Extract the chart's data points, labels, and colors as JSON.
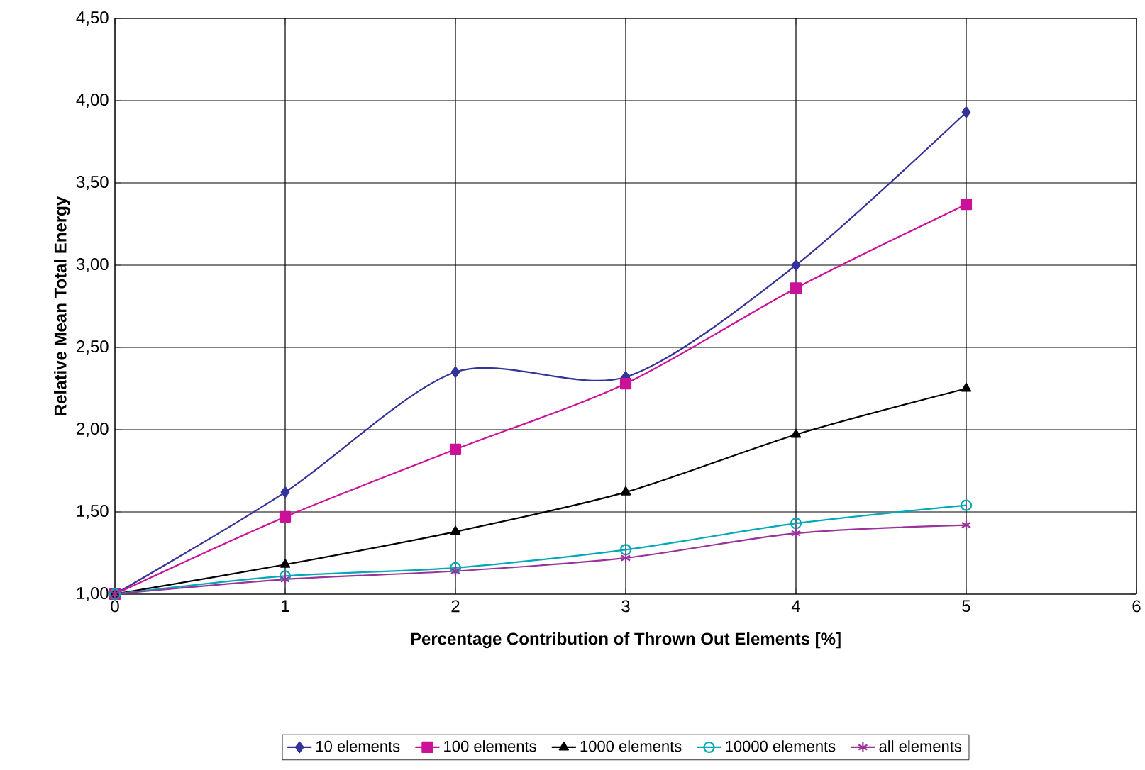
{
  "chart_data": {
    "type": "line",
    "xlabel": "Percentage Contribution of Thrown Out Elements [%]",
    "ylabel": "Relative Mean Total Energy",
    "x": [
      0,
      1,
      2,
      3,
      4,
      5
    ],
    "xlim": [
      0,
      6
    ],
    "xticks": [
      0,
      1,
      2,
      3,
      4,
      5,
      6
    ],
    "ylim": [
      1,
      4.5
    ],
    "yticks": [
      {
        "value": 1,
        "label": "1,00"
      },
      {
        "value": 1.5,
        "label": "1,50"
      },
      {
        "value": 2,
        "label": "2,00"
      },
      {
        "value": 2.5,
        "label": "2,50"
      },
      {
        "value": 3,
        "label": "3,00"
      },
      {
        "value": 3.5,
        "label": "3,50"
      },
      {
        "value": 4,
        "label": "4,00"
      },
      {
        "value": 4.5,
        "label": "4,50"
      }
    ],
    "grid": true,
    "legend": "bottom",
    "line_style": "solid",
    "series": [
      {
        "name": "10 elements",
        "color": "#333399",
        "marker": "diamond",
        "values": [
          1.0,
          1.62,
          2.35,
          2.32,
          3.0,
          3.93
        ]
      },
      {
        "name": "100 elements",
        "color": "#cc1199",
        "marker": "square",
        "values": [
          1.0,
          1.47,
          1.88,
          2.28,
          2.86,
          3.37
        ]
      },
      {
        "name": "1000 elements",
        "color": "#000000",
        "marker": "triangle",
        "values": [
          1.0,
          1.18,
          1.38,
          1.62,
          1.97,
          2.25
        ]
      },
      {
        "name": "10000 elements",
        "color": "#00a8b8",
        "marker": "circle",
        "values": [
          1.0,
          1.11,
          1.16,
          1.27,
          1.43,
          1.54
        ]
      },
      {
        "name": "all elements",
        "color": "#993399",
        "marker": "cross",
        "values": [
          1.0,
          1.09,
          1.14,
          1.22,
          1.37,
          1.42
        ]
      }
    ]
  }
}
